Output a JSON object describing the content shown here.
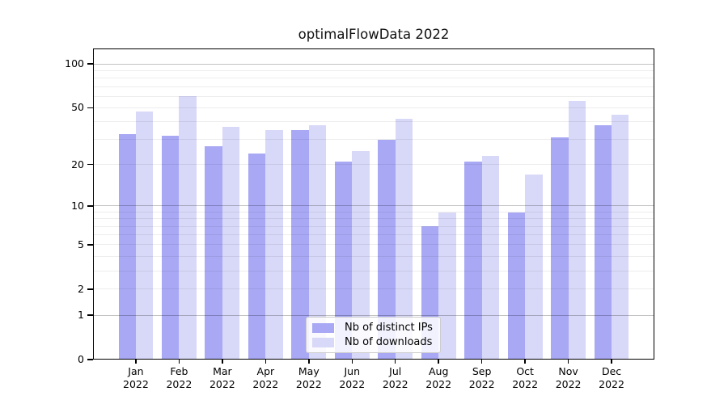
{
  "chart_data": {
    "type": "bar",
    "title": "optimalFlowData 2022",
    "categories": [
      {
        "label": "Jan",
        "sublabel": "2022"
      },
      {
        "label": "Feb",
        "sublabel": "2022"
      },
      {
        "label": "Mar",
        "sublabel": "2022"
      },
      {
        "label": "Apr",
        "sublabel": "2022"
      },
      {
        "label": "May",
        "sublabel": "2022"
      },
      {
        "label": "Jun",
        "sublabel": "2022"
      },
      {
        "label": "Jul",
        "sublabel": "2022"
      },
      {
        "label": "Aug",
        "sublabel": "2022"
      },
      {
        "label": "Sep",
        "sublabel": "2022"
      },
      {
        "label": "Oct",
        "sublabel": "2022"
      },
      {
        "label": "Nov",
        "sublabel": "2022"
      },
      {
        "label": "Dec",
        "sublabel": "2022"
      }
    ],
    "series": [
      {
        "name": "Nb of distinct IPs",
        "color": "#a8a8f5",
        "values": [
          33,
          32,
          27,
          24,
          35,
          21,
          30,
          7,
          21,
          9,
          31,
          38
        ]
      },
      {
        "name": "Nb of downloads",
        "color": "#d8d8f8",
        "values": [
          47,
          60,
          37,
          35,
          38,
          25,
          42,
          9,
          23,
          17,
          56,
          45
        ]
      }
    ],
    "xlabel": "",
    "ylabel": "",
    "yscale": "log1p",
    "ylim": [
      0,
      127
    ],
    "yticks": [
      0,
      1,
      2,
      5,
      10,
      20,
      50,
      100
    ],
    "minor_gridlines": [
      2,
      3,
      4,
      5,
      6,
      7,
      8,
      9,
      20,
      30,
      40,
      50,
      60,
      70,
      80,
      90
    ],
    "major_gridlines": [
      1,
      10,
      100
    ],
    "grid": true,
    "legend_position": "lower center",
    "axis_color": "#000000",
    "text_color": "#111111"
  }
}
